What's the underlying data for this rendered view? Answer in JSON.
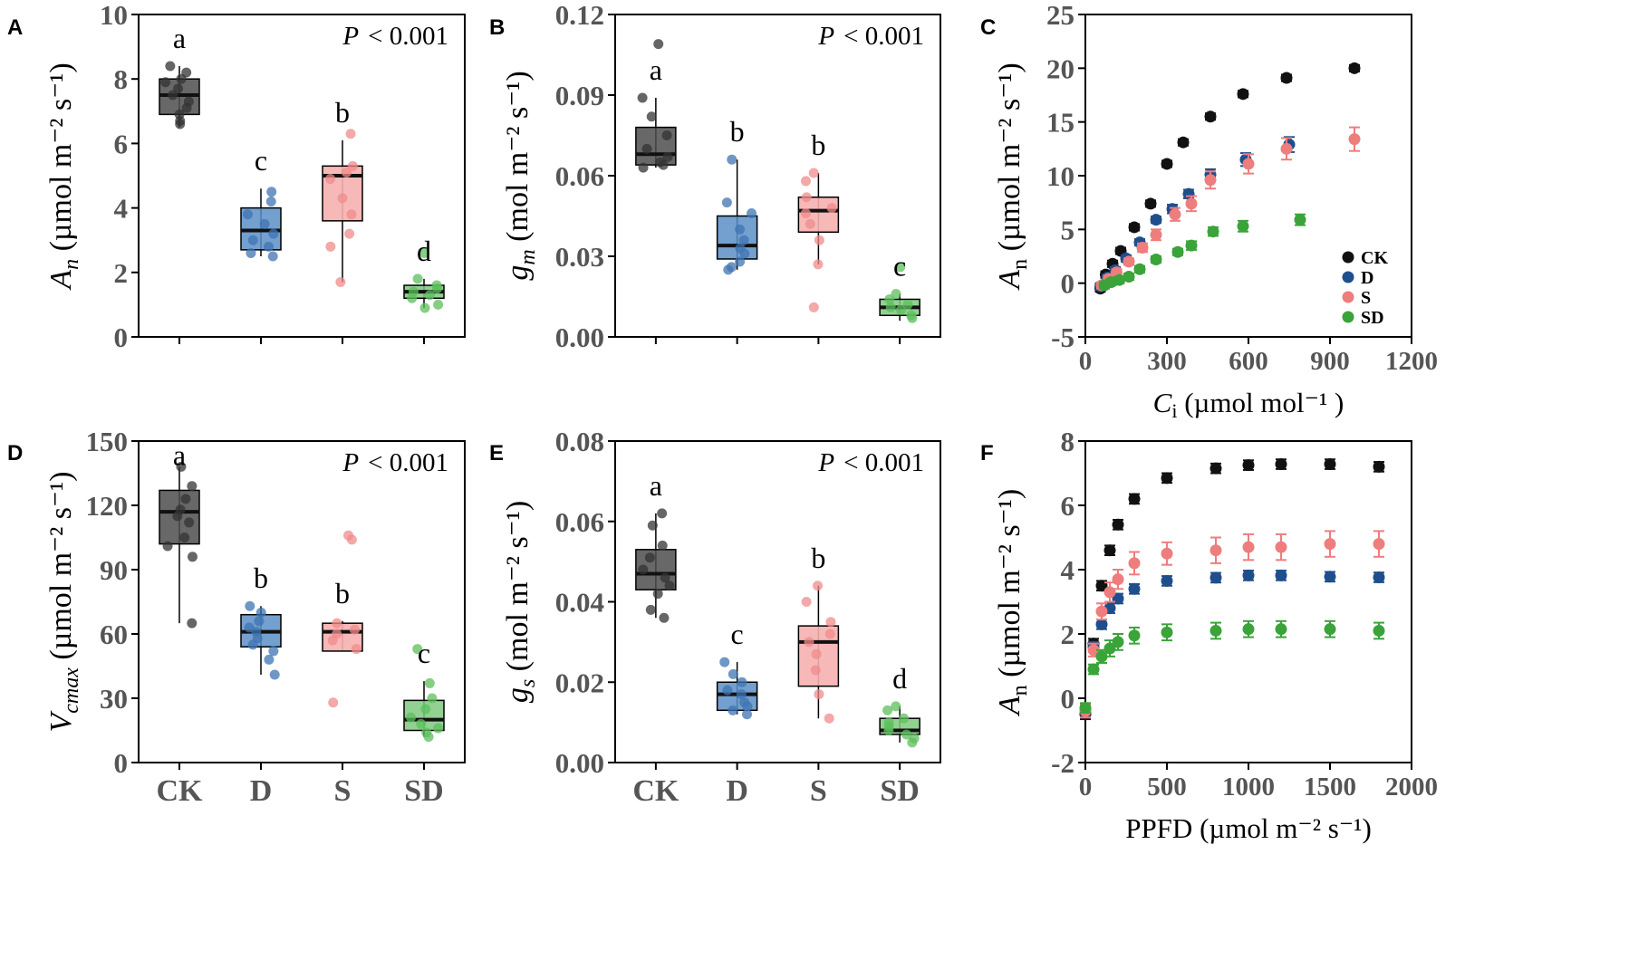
{
  "colors": {
    "CK": "#4d4d4d",
    "CK_dot": "#333333",
    "CK_series": "#111111",
    "D": "#5b8fc7",
    "D_dot": "#3f74b3",
    "D_series": "#1f4e8c",
    "S": "#f6b0b0",
    "S_dot": "#f08b8b",
    "S_series": "#ee7d7d",
    "SD": "#7fc97f",
    "SD_dot": "#5cbf5c",
    "SD_series": "#3aa33a"
  },
  "chart_data": [
    {
      "panel": "A",
      "type": "box",
      "ylabel_main": "A",
      "ylabel_sub": "n",
      "ylabel_unit": " (µmol m⁻² s⁻¹)",
      "ylim": [
        0,
        10
      ],
      "yticks": [
        0,
        2,
        4,
        6,
        8,
        10
      ],
      "ytick_labels": [
        "0",
        "2",
        "4",
        "6",
        "8",
        "10"
      ],
      "p_text": "< 0.001",
      "p_label": "P",
      "groups": [
        {
          "name": "CK",
          "key": "CK",
          "letter": "a",
          "q1": 6.9,
          "median": 7.5,
          "q3": 8.0,
          "whisker_low": 6.5,
          "whisker_high": 8.4,
          "points": [
            8.4,
            8.2,
            8.0,
            7.7,
            7.5,
            7.3,
            7.1,
            6.9,
            6.7,
            6.6,
            7.9
          ]
        },
        {
          "name": "D",
          "key": "D",
          "letter": "c",
          "q1": 2.7,
          "median": 3.3,
          "q3": 4.0,
          "whisker_low": 2.5,
          "whisker_high": 4.6,
          "points": [
            4.5,
            4.2,
            3.8,
            3.5,
            3.2,
            3.0,
            2.8,
            2.6,
            2.5
          ]
        },
        {
          "name": "S",
          "key": "S",
          "letter": "b",
          "q1": 3.6,
          "median": 5.0,
          "q3": 5.3,
          "whisker_low": 1.7,
          "whisker_high": 6.1,
          "points": [
            6.3,
            5.3,
            5.1,
            4.9,
            4.3,
            3.8,
            3.2,
            2.8,
            1.7
          ]
        },
        {
          "name": "SD",
          "key": "SD",
          "letter": "d",
          "q1": 1.2,
          "median": 1.4,
          "q3": 1.6,
          "whisker_low": 0.9,
          "whisker_high": 1.8,
          "points": [
            2.6,
            1.8,
            1.6,
            1.5,
            1.4,
            1.3,
            1.2,
            1.0,
            0.9
          ]
        }
      ]
    },
    {
      "panel": "B",
      "type": "box",
      "ylabel_main": "g",
      "ylabel_sub": "m",
      "ylabel_unit": " (mol m⁻² s⁻¹)",
      "ylim": [
        0,
        0.12
      ],
      "yticks": [
        0,
        0.03,
        0.06,
        0.09,
        0.12
      ],
      "ytick_labels": [
        "0.00",
        "0.03",
        "0.06",
        "0.09",
        "0.12"
      ],
      "p_text": "< 0.001",
      "p_label": "P",
      "groups": [
        {
          "name": "CK",
          "key": "CK",
          "letter": "a",
          "q1": 0.064,
          "median": 0.068,
          "q3": 0.078,
          "whisker_low": 0.063,
          "whisker_high": 0.089,
          "points": [
            0.109,
            0.089,
            0.082,
            0.075,
            0.07,
            0.067,
            0.065,
            0.064,
            0.063
          ]
        },
        {
          "name": "D",
          "key": "D",
          "letter": "b",
          "q1": 0.029,
          "median": 0.034,
          "q3": 0.045,
          "whisker_low": 0.025,
          "whisker_high": 0.066,
          "points": [
            0.066,
            0.05,
            0.046,
            0.04,
            0.036,
            0.033,
            0.031,
            0.028,
            0.026,
            0.025
          ]
        },
        {
          "name": "S",
          "key": "S",
          "letter": "b",
          "q1": 0.039,
          "median": 0.047,
          "q3": 0.052,
          "whisker_low": 0.027,
          "whisker_high": 0.061,
          "points": [
            0.061,
            0.058,
            0.052,
            0.048,
            0.046,
            0.042,
            0.036,
            0.027,
            0.011
          ]
        },
        {
          "name": "SD",
          "key": "SD",
          "letter": "c",
          "q1": 0.008,
          "median": 0.011,
          "q3": 0.014,
          "whisker_low": 0.006,
          "whisker_high": 0.016,
          "points": [
            0.026,
            0.016,
            0.014,
            0.012,
            0.011,
            0.01,
            0.008,
            0.007
          ]
        }
      ]
    },
    {
      "panel": "C",
      "type": "scatter",
      "xlabel_main": "C",
      "xlabel_sub": "i",
      "xlabel_unit": " (µmol mol⁻¹ )",
      "ylabel_main": "A",
      "ylabel_sub": "n",
      "ylabel_unit": " (µmol  m⁻² s⁻¹)",
      "xlim": [
        0,
        1200
      ],
      "ylim": [
        -5,
        25
      ],
      "xticks": [
        0,
        300,
        600,
        900,
        1200
      ],
      "xtick_labels": [
        "0",
        "300",
        "600",
        "900",
        "1200"
      ],
      "yticks": [
        -5,
        0,
        5,
        10,
        15,
        20,
        25
      ],
      "ytick_labels": [
        "-5",
        "0",
        "5",
        "10",
        "15",
        "20",
        "25"
      ],
      "legend_position": "bottom-right",
      "series": [
        {
          "name": "CK",
          "key": "CK",
          "x": [
            55,
            75,
            100,
            130,
            180,
            240,
            300,
            360,
            460,
            580,
            740,
            990
          ],
          "y": [
            -0.5,
            0.8,
            1.8,
            3.0,
            5.2,
            7.4,
            11.1,
            13.1,
            15.5,
            17.6,
            19.1,
            20.0
          ],
          "err": [
            0.3,
            0.3,
            0.3,
            0.3,
            0.3,
            0.3,
            0.3,
            0.3,
            0.3,
            0.3,
            0.3,
            0.3
          ]
        },
        {
          "name": "D",
          "key": "D",
          "x": [
            55,
            80,
            110,
            150,
            200,
            260,
            320,
            380,
            460,
            590,
            750
          ],
          "y": [
            -0.3,
            0.5,
            1.2,
            2.3,
            3.8,
            5.9,
            6.9,
            8.3,
            10.1,
            11.5,
            12.9
          ],
          "err": [
            0.3,
            0.3,
            0.3,
            0.3,
            0.3,
            0.3,
            0.4,
            0.4,
            0.5,
            0.6,
            0.7
          ]
        },
        {
          "name": "S",
          "key": "S",
          "x": [
            60,
            85,
            115,
            160,
            210,
            260,
            330,
            390,
            460,
            600,
            740,
            990
          ],
          "y": [
            -0.2,
            0.4,
            1.0,
            2.0,
            3.3,
            4.5,
            6.4,
            7.4,
            9.6,
            11.1,
            12.5,
            13.4
          ],
          "err": [
            0.3,
            0.3,
            0.3,
            0.3,
            0.4,
            0.5,
            0.6,
            0.7,
            0.8,
            0.9,
            1.0,
            1.1
          ]
        },
        {
          "name": "SD",
          "key": "SD",
          "x": [
            70,
            95,
            125,
            160,
            200,
            260,
            340,
            390,
            470,
            580,
            790
          ],
          "y": [
            -0.2,
            0.1,
            0.3,
            0.6,
            1.3,
            2.2,
            2.9,
            3.5,
            4.8,
            5.3,
            5.9
          ],
          "err": [
            0.3,
            0.3,
            0.3,
            0.3,
            0.3,
            0.3,
            0.3,
            0.4,
            0.4,
            0.5,
            0.5
          ]
        }
      ]
    },
    {
      "panel": "D",
      "type": "box",
      "ylabel_main": "V",
      "ylabel_sub": "cmax",
      "ylabel_unit": " (µmol m⁻² s⁻¹)",
      "ylim": [
        0,
        150
      ],
      "yticks": [
        0,
        30,
        60,
        90,
        120,
        150
      ],
      "ytick_labels": [
        "0",
        "30",
        "60",
        "90",
        "120",
        "150"
      ],
      "p_text": "< 0.001",
      "p_label": "P",
      "groups": [
        {
          "name": "CK",
          "key": "CK",
          "letter": "a",
          "q1": 102,
          "median": 117,
          "q3": 127,
          "whisker_low": 65,
          "whisker_high": 138,
          "points": [
            138,
            129,
            123,
            118,
            115,
            112,
            105,
            101,
            96,
            65
          ]
        },
        {
          "name": "D",
          "key": "D",
          "letter": "b",
          "q1": 54,
          "median": 61,
          "q3": 69,
          "whisker_low": 41,
          "whisker_high": 73,
          "points": [
            73,
            70,
            66,
            63,
            61,
            58,
            55,
            52,
            48,
            41
          ]
        },
        {
          "name": "S",
          "key": "S",
          "letter": "b",
          "q1": 52,
          "median": 61,
          "q3": 65,
          "whisker_low": 52,
          "whisker_high": 66,
          "points": [
            106,
            104,
            65,
            62,
            60,
            57,
            53,
            28
          ]
        },
        {
          "name": "SD",
          "key": "SD",
          "letter": "c",
          "q1": 15,
          "median": 20,
          "q3": 29,
          "whisker_low": 12,
          "whisker_high": 38,
          "points": [
            53,
            37,
            30,
            25,
            21,
            18,
            16,
            14,
            12
          ]
        }
      ]
    },
    {
      "panel": "E",
      "type": "box",
      "ylabel_main": "g",
      "ylabel_sub": "s",
      "ylabel_unit": " (mol m⁻² s⁻¹)",
      "ylim": [
        0,
        0.08
      ],
      "yticks": [
        0,
        0.02,
        0.04,
        0.06,
        0.08
      ],
      "ytick_labels": [
        "0.00",
        "0.02",
        "0.04",
        "0.06",
        "0.08"
      ],
      "p_text": "< 0.001",
      "p_label": "P",
      "groups": [
        {
          "name": "CK",
          "key": "CK",
          "letter": "a",
          "q1": 0.043,
          "median": 0.047,
          "q3": 0.053,
          "whisker_low": 0.036,
          "whisker_high": 0.062,
          "points": [
            0.062,
            0.059,
            0.054,
            0.051,
            0.048,
            0.046,
            0.044,
            0.042,
            0.038,
            0.036
          ]
        },
        {
          "name": "D",
          "key": "D",
          "letter": "c",
          "q1": 0.013,
          "median": 0.017,
          "q3": 0.02,
          "whisker_low": 0.012,
          "whisker_high": 0.025,
          "points": [
            0.025,
            0.022,
            0.02,
            0.018,
            0.017,
            0.015,
            0.014,
            0.013,
            0.012
          ]
        },
        {
          "name": "S",
          "key": "S",
          "letter": "b",
          "q1": 0.019,
          "median": 0.03,
          "q3": 0.034,
          "whisker_low": 0.011,
          "whisker_high": 0.044,
          "points": [
            0.044,
            0.04,
            0.035,
            0.032,
            0.03,
            0.027,
            0.023,
            0.017,
            0.011
          ]
        },
        {
          "name": "SD",
          "key": "SD",
          "letter": "d",
          "q1": 0.007,
          "median": 0.008,
          "q3": 0.011,
          "whisker_low": 0.005,
          "whisker_high": 0.014,
          "points": [
            0.014,
            0.013,
            0.011,
            0.01,
            0.009,
            0.008,
            0.007,
            0.006,
            0.005
          ]
        }
      ]
    },
    {
      "panel": "F",
      "type": "scatter",
      "xlabel_main": "PPFD",
      "xlabel_sub": "",
      "xlabel_unit": " (µmol m⁻² s⁻¹)",
      "ylabel_main": "A",
      "ylabel_sub": "n",
      "ylabel_unit": " (µmol  m⁻² s⁻¹)",
      "xlim": [
        0,
        2000
      ],
      "ylim": [
        -2,
        8
      ],
      "xticks": [
        0,
        500,
        1000,
        1500,
        2000
      ],
      "xtick_labels": [
        "0",
        "500",
        "1000",
        "1500",
        "2000"
      ],
      "yticks": [
        -2,
        0,
        2,
        4,
        6,
        8
      ],
      "ytick_labels": [
        "-2",
        "0",
        "2",
        "4",
        "6",
        "8"
      ],
      "series": [
        {
          "name": "CK",
          "key": "CK",
          "x": [
            0,
            50,
            100,
            150,
            200,
            300,
            500,
            800,
            1000,
            1200,
            1500,
            1800
          ],
          "y": [
            -0.5,
            1.7,
            3.5,
            4.6,
            5.4,
            6.2,
            6.85,
            7.15,
            7.25,
            7.28,
            7.28,
            7.2
          ],
          "err": [
            0.15,
            0.15,
            0.15,
            0.15,
            0.15,
            0.15,
            0.15,
            0.15,
            0.15,
            0.15,
            0.15,
            0.15
          ]
        },
        {
          "name": "D",
          "key": "D",
          "x": [
            0,
            50,
            100,
            150,
            200,
            300,
            500,
            800,
            1000,
            1200,
            1500,
            1800
          ],
          "y": [
            -0.4,
            1.6,
            2.3,
            2.8,
            3.1,
            3.4,
            3.65,
            3.75,
            3.82,
            3.82,
            3.78,
            3.76
          ],
          "err": [
            0.15,
            0.15,
            0.15,
            0.15,
            0.15,
            0.15,
            0.15,
            0.15,
            0.15,
            0.15,
            0.15,
            0.15
          ]
        },
        {
          "name": "S",
          "key": "S",
          "x": [
            0,
            50,
            100,
            150,
            200,
            300,
            500,
            800,
            1000,
            1200,
            1500,
            1800
          ],
          "y": [
            -0.4,
            1.5,
            2.7,
            3.3,
            3.7,
            4.2,
            4.5,
            4.6,
            4.7,
            4.7,
            4.8,
            4.8
          ],
          "err": [
            0.2,
            0.2,
            0.25,
            0.3,
            0.3,
            0.35,
            0.35,
            0.4,
            0.4,
            0.4,
            0.4,
            0.4
          ]
        },
        {
          "name": "SD",
          "key": "SD",
          "x": [
            0,
            50,
            100,
            150,
            200,
            300,
            500,
            800,
            1000,
            1200,
            1500,
            1800
          ],
          "y": [
            -0.3,
            0.9,
            1.3,
            1.55,
            1.75,
            1.95,
            2.05,
            2.1,
            2.15,
            2.15,
            2.15,
            2.1
          ],
          "err": [
            0.15,
            0.15,
            0.2,
            0.25,
            0.25,
            0.25,
            0.25,
            0.25,
            0.25,
            0.25,
            0.25,
            0.25
          ]
        }
      ]
    }
  ]
}
